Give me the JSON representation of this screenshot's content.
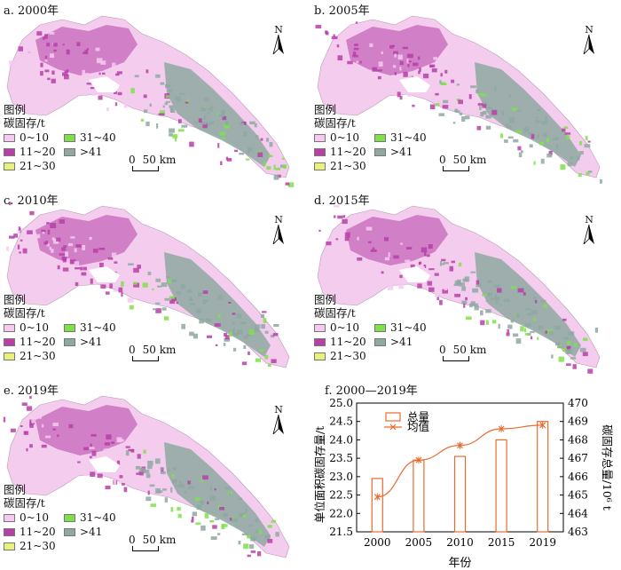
{
  "legend": {
    "title": "图例",
    "subtitle": "碳固存/t",
    "items": [
      {
        "label": "0~10",
        "color": "#f6c9f1"
      },
      {
        "label": "11~20",
        "color": "#b73fa7"
      },
      {
        "label": "21~30",
        "color": "#e8f27a"
      },
      {
        "label": "31~40",
        "color": "#7fe04a"
      },
      {
        "label": ">41",
        "color": "#8fa8a2"
      }
    ]
  },
  "north_label": "N",
  "scale": {
    "zero": "0",
    "distance": "50 km"
  },
  "panels": [
    {
      "id": "a",
      "title": "a. 2000年"
    },
    {
      "id": "b",
      "title": "b. 2005年"
    },
    {
      "id": "c",
      "title": "c. 2010年"
    },
    {
      "id": "d",
      "title": "d. 2015年"
    },
    {
      "id": "e",
      "title": "e. 2019年"
    }
  ],
  "chart_data": {
    "type": "bar",
    "title": "f. 2000—2019年",
    "categories": [
      "2000",
      "2005",
      "2010",
      "2015",
      "2019"
    ],
    "xlabel": "年份",
    "ylabel": "单位面积碳固存量/t",
    "y2label": "碳固存总量/10⁶ t",
    "ylim": [
      21.5,
      25.0
    ],
    "y_ticks": [
      "21.5",
      "22.0",
      "22.5",
      "23.0",
      "23.5",
      "24.0",
      "24.5",
      "25.0"
    ],
    "y2lim": [
      463,
      470
    ],
    "y2_ticks": [
      "463",
      "464",
      "465",
      "466",
      "467",
      "468",
      "469",
      "470"
    ],
    "legend_position": "top-left",
    "series": [
      {
        "name": "总量",
        "type": "bar",
        "axis": "left",
        "color": "#e86b2e",
        "values": [
          22.95,
          23.45,
          23.55,
          24.0,
          24.5
        ]
      },
      {
        "name": "均值",
        "type": "line",
        "axis": "right",
        "color": "#e86b2e",
        "values": [
          464.9,
          466.9,
          467.7,
          468.6,
          468.8
        ]
      }
    ]
  }
}
